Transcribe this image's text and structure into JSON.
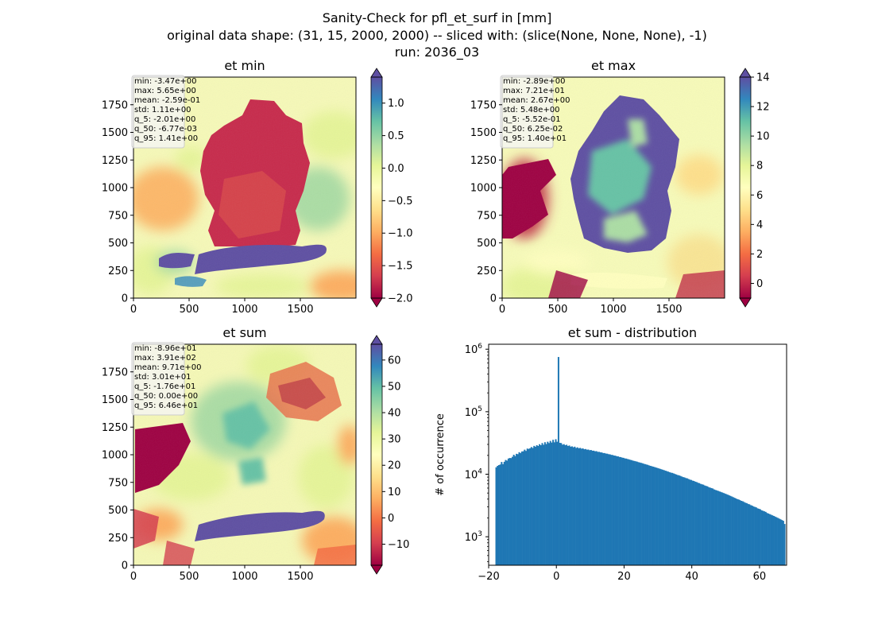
{
  "figure": {
    "suptitle_lines": [
      "Sanity-Check for pfl_et_surf in [mm]",
      "original data shape: (31, 15, 2000, 2000) -- sliced with: (slice(None, None, None), -1)",
      "run: 2036_03"
    ]
  },
  "chart_data": [
    {
      "type": "heatmap",
      "title": "et min",
      "xlim": [
        0,
        2000
      ],
      "ylim": [
        0,
        2000
      ],
      "xticks": [
        0,
        500,
        1000,
        1500
      ],
      "yticks": [
        0,
        250,
        500,
        750,
        1000,
        1250,
        1500,
        1750
      ],
      "colorbar": {
        "cmap": "Spectral",
        "range": [
          -2.0,
          1.4
        ],
        "ticks": [
          "-2.0",
          "-1.5",
          "-1.0",
          "-0.5",
          "0.0",
          "0.5",
          "1.0"
        ],
        "extend": "both"
      },
      "stats": [
        "min: -3.47e+00",
        "max: 5.65e+00",
        "mean: -2.59e-01",
        "std: 1.11e+00",
        "q_5: -2.01e+00",
        "q_50: -6.77e-03",
        "q_95: 1.41e+00"
      ]
    },
    {
      "type": "heatmap",
      "title": "et max",
      "xlim": [
        0,
        2000
      ],
      "ylim": [
        0,
        2000
      ],
      "xticks": [
        0,
        500,
        1000,
        1500
      ],
      "yticks": [
        0,
        250,
        500,
        750,
        1000,
        1250,
        1500,
        1750
      ],
      "colorbar": {
        "cmap": "Spectral",
        "range": [
          -1,
          14
        ],
        "ticks": [
          "0",
          "2",
          "4",
          "6",
          "8",
          "10",
          "12",
          "14"
        ],
        "extend": "both"
      },
      "stats": [
        "min: -2.89e+00",
        "max: 7.21e+01",
        "mean: 2.67e+00",
        "std: 5.48e+00",
        "q_5: -5.52e-01",
        "q_50: 6.25e-02",
        "q_95: 1.40e+01"
      ]
    },
    {
      "type": "heatmap",
      "title": "et sum",
      "xlim": [
        0,
        2000
      ],
      "ylim": [
        0,
        2000
      ],
      "xticks": [
        0,
        500,
        1000,
        1500
      ],
      "yticks": [
        0,
        250,
        500,
        750,
        1000,
        1250,
        1500,
        1750
      ],
      "colorbar": {
        "cmap": "Spectral",
        "range": [
          -18,
          66
        ],
        "ticks": [
          "-10",
          "0",
          "10",
          "20",
          "30",
          "40",
          "50",
          "60"
        ],
        "extend": "both"
      },
      "stats": [
        "min: -8.96e+01",
        "max: 3.91e+02",
        "mean: 9.71e+00",
        "std: 3.01e+01",
        "q_5: -1.76e+01",
        "q_50: 0.00e+00",
        "q_95: 6.46e+01"
      ]
    },
    {
      "type": "bar",
      "title": "et sum - distribution",
      "ylabel": "# of occurrence",
      "xlabel": "",
      "yscale": "log",
      "xlim": [
        -20,
        68
      ],
      "ylim": [
        350,
        1200000
      ],
      "xticks": [
        -20,
        0,
        20,
        40,
        60
      ],
      "yticks": [
        {
          "label": "10",
          "exp": "3",
          "value": 1000
        },
        {
          "label": "10",
          "exp": "4",
          "value": 10000
        },
        {
          "label": "10",
          "exp": "5",
          "value": 100000
        },
        {
          "label": "10",
          "exp": "6",
          "value": 1000000
        }
      ],
      "bar_color": "#1f77b4",
      "bins": {
        "start": -18.0,
        "width": 0.4,
        "counts": [
          12900,
          13600,
          14000,
          14300,
          15700,
          14500,
          15800,
          16900,
          16500,
          17800,
          18200,
          18100,
          19000,
          20500,
          19500,
          21200,
          20900,
          22500,
          21800,
          23100,
          23300,
          24700,
          23600,
          25700,
          25400,
          26000,
          27200,
          26300,
          28400,
          27500,
          29100,
          28300,
          30200,
          29100,
          31500,
          29600,
          32500,
          30400,
          33100,
          31500,
          34100,
          32100,
          35500,
          32400,
          36300,
          33100,
          750000,
          31800,
          31500,
          29700,
          30300,
          29100,
          29600,
          28300,
          28800,
          27600,
          27900,
          27000,
          27600,
          26300,
          26900,
          26000,
          26400,
          25600,
          25900,
          25100,
          25300,
          24700,
          24800,
          24200,
          24400,
          23800,
          23800,
          23300,
          23400,
          22800,
          22800,
          22400,
          22300,
          21800,
          21800,
          21400,
          21300,
          20900,
          20800,
          20400,
          20300,
          19900,
          19800,
          19400,
          19300,
          18900,
          18800,
          18400,
          18300,
          17900,
          17800,
          17500,
          17300,
          17000,
          16800,
          16500,
          16300,
          16100,
          15900,
          15600,
          15400,
          15200,
          15000,
          14700,
          14500,
          14300,
          14100,
          13800,
          13600,
          13400,
          13200,
          13000,
          12800,
          12600,
          12400,
          12200,
          12000,
          11800,
          11600,
          11400,
          11200,
          11000,
          10800,
          10600,
          10500,
          10300,
          10100,
          9900,
          9700,
          9600,
          9400,
          9200,
          9000,
          8900,
          8700,
          8600,
          8400,
          8200,
          8100,
          7900,
          7800,
          7600,
          7500,
          7300,
          7200,
          7000,
          6900,
          6800,
          6600,
          6500,
          6400,
          6200,
          6100,
          6000,
          5900,
          5700,
          5600,
          5500,
          5400,
          5300,
          5200,
          5100,
          5000,
          4900,
          4800,
          4700,
          4600,
          4500,
          4400,
          4300,
          4200,
          4100,
          4000,
          3950,
          3850,
          3750,
          3700,
          3600,
          3500,
          3450,
          3350,
          3300,
          3200,
          3150,
          3050,
          3000,
          2950,
          2850,
          2800,
          2750,
          2650,
          2600,
          2550,
          2500,
          2400,
          2350,
          2300,
          2250,
          2200,
          2150,
          2100,
          2050,
          2000,
          1950,
          1900,
          1850,
          1800,
          1600
        ]
      }
    }
  ]
}
